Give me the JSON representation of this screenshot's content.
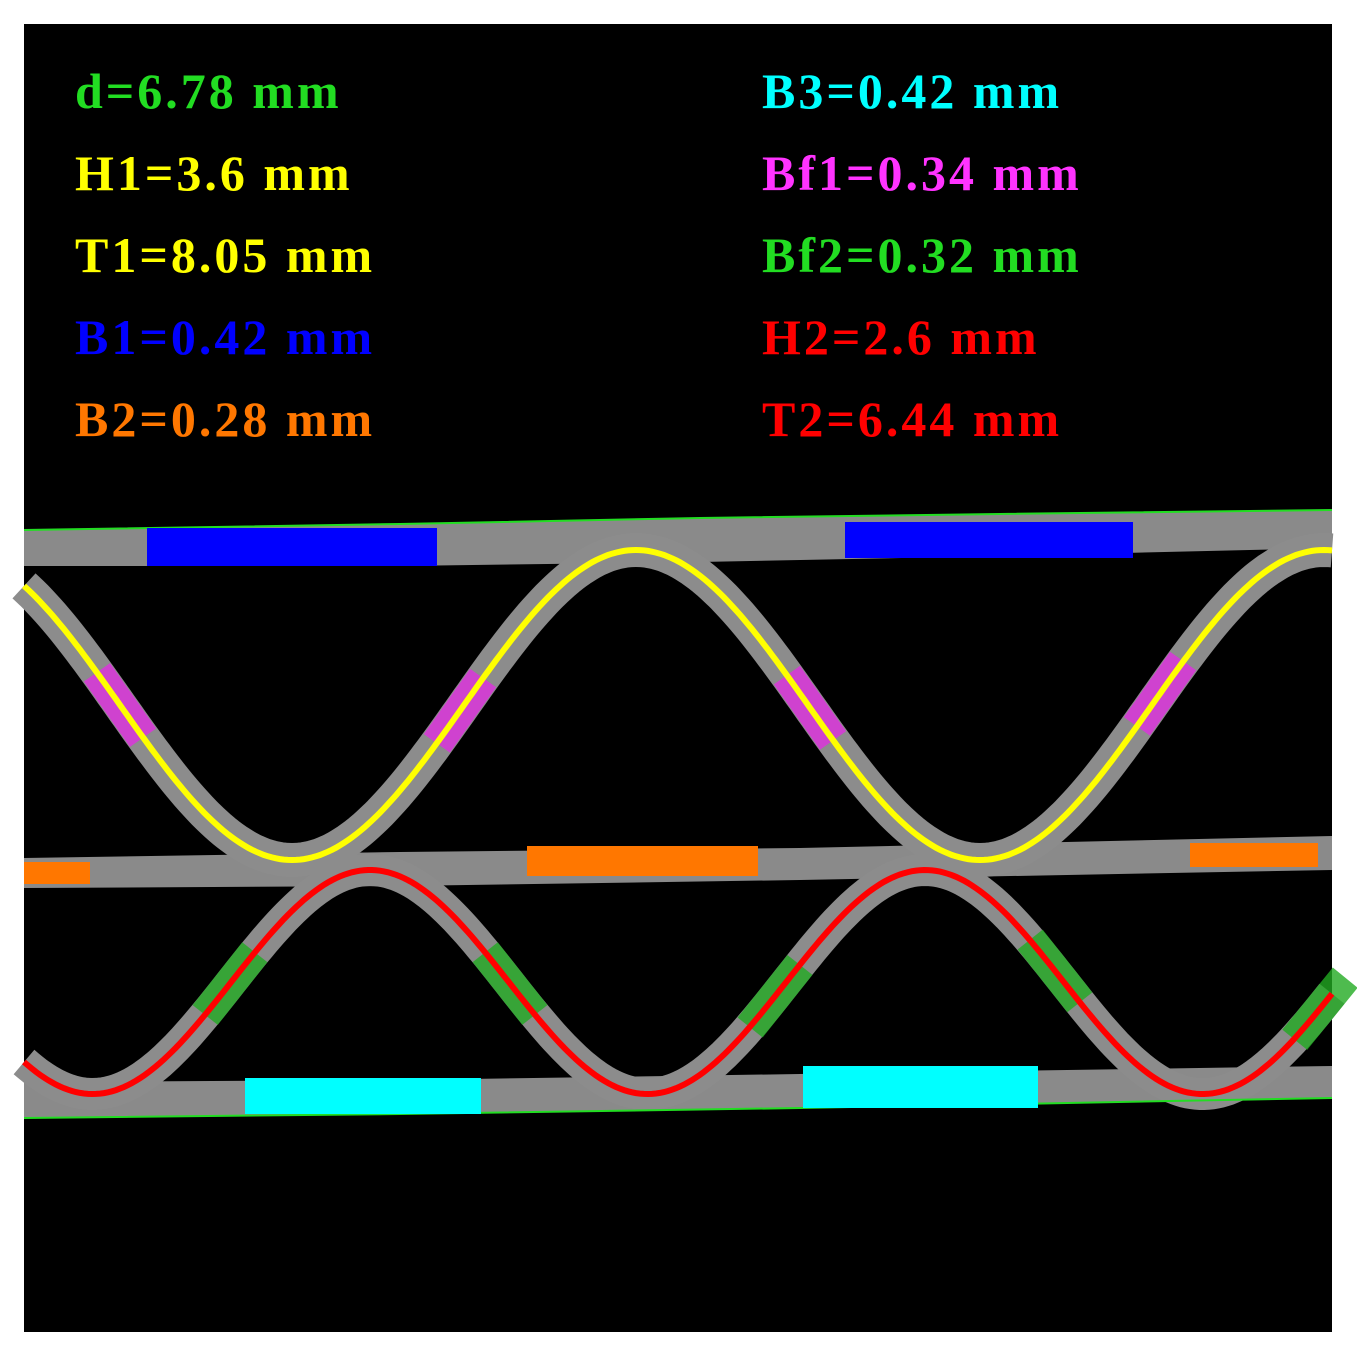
{
  "labels": {
    "left": [
      "d=6.78 mm",
      "H1=3.6 mm",
      "T1=8.05 mm",
      "B1=0.42 mm",
      "B2=0.28 mm"
    ],
    "right": [
      "B3=0.42 mm",
      "Bf1=0.34 mm",
      "Bf2=0.32 mm",
      "H2=2.6 mm",
      "T2=6.44 mm"
    ]
  }
}
